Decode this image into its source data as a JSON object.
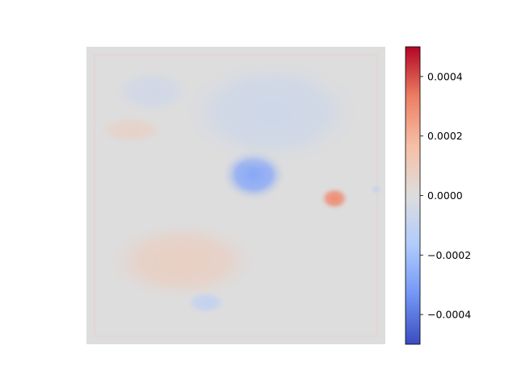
{
  "chart_data": {
    "type": "heatmap",
    "title": "",
    "xlabel": "",
    "ylabel": "",
    "axes_visible": false,
    "colormap": "coolwarm",
    "colormap_stops": [
      "#3b4cc0",
      "#7396f5",
      "#b0cbfc",
      "#dddddd",
      "#f6bfa6",
      "#ec7f63",
      "#b40426"
    ],
    "value_range": [
      -0.0005,
      0.0005
    ],
    "colorbar": {
      "ticks": [
        0.0004,
        0.0002,
        0.0,
        -0.0002,
        -0.0004
      ],
      "tick_labels": [
        "0.0004",
        "0.0002",
        "0.0000",
        "−0.0002",
        "−0.0004"
      ]
    },
    "features": [
      {
        "name": "central-negative-blob",
        "cx": 0.56,
        "cy": 0.43,
        "rx": 0.11,
        "ry": 0.09,
        "value": -0.00028
      },
      {
        "name": "upper-right-negative-region",
        "cx": 0.62,
        "cy": 0.22,
        "rx": 0.32,
        "ry": 0.19,
        "value": -6e-05
      },
      {
        "name": "upper-left-negative-region",
        "cx": 0.22,
        "cy": 0.15,
        "rx": 0.14,
        "ry": 0.08,
        "value": -5e-05
      },
      {
        "name": "right-positive-hotspot",
        "cx": 0.83,
        "cy": 0.51,
        "rx": 0.05,
        "ry": 0.04,
        "value": 0.0003
      },
      {
        "name": "lower-left-positive-region",
        "cx": 0.32,
        "cy": 0.72,
        "rx": 0.27,
        "ry": 0.14,
        "value": 8e-05
      },
      {
        "name": "left-positive-streak",
        "cx": 0.15,
        "cy": 0.28,
        "rx": 0.12,
        "ry": 0.05,
        "value": 6e-05
      },
      {
        "name": "bottom-negative-blob",
        "cx": 0.4,
        "cy": 0.86,
        "rx": 0.07,
        "ry": 0.04,
        "value": -0.0001
      },
      {
        "name": "right-edge-negative-spot",
        "cx": 0.97,
        "cy": 0.48,
        "rx": 0.02,
        "ry": 0.015,
        "value": -0.0001
      }
    ]
  }
}
